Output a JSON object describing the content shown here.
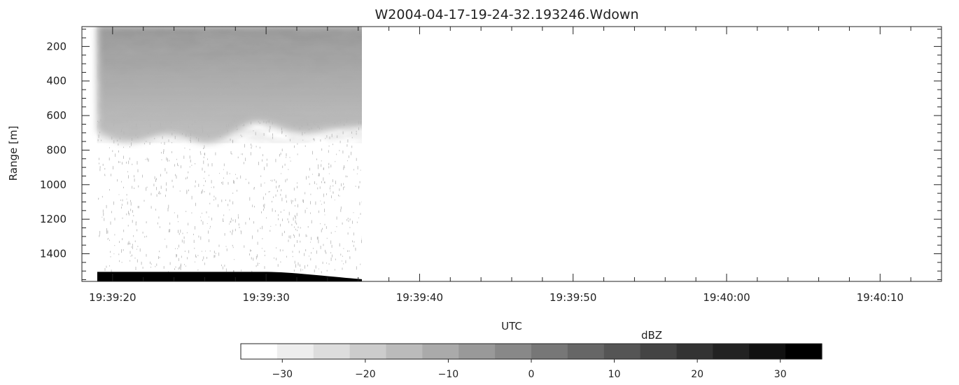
{
  "chart_data": {
    "type": "heatmap",
    "title": "W2004-04-17-19-24-32.193246.Wdown",
    "xlabel": "UTC",
    "ylabel": "Range  [m]",
    "x_axis": {
      "range_seconds_of_day": [
        70758,
        70814
      ],
      "ticks": [
        {
          "value": 70760,
          "label": "19:39:20"
        },
        {
          "value": 70770,
          "label": "19:39:30"
        },
        {
          "value": 70780,
          "label": "19:39:40"
        },
        {
          "value": 70790,
          "label": "19:39:50"
        },
        {
          "value": 70800,
          "label": "19:40:00"
        },
        {
          "value": 70810,
          "label": "19:40:10"
        }
      ]
    },
    "y_axis": {
      "range": [
        85,
        1560
      ],
      "inverted": true,
      "ticks": [
        200,
        400,
        600,
        800,
        1000,
        1200,
        1400
      ]
    },
    "data_extent": {
      "x_start": "19:39:19",
      "x_end": "19:39:37.4"
    },
    "features": [
      {
        "name": "cloud",
        "range_top": 85,
        "range_bottom_min": 640,
        "range_bottom_max": 820,
        "dbz_min": -20,
        "dbz_max": -8
      },
      {
        "name": "ground",
        "range_top": 1505,
        "range_bottom": 1560,
        "dbz": 33,
        "until": "19:39:37"
      }
    ],
    "colorbar": {
      "label": "dBZ",
      "range": [
        -35,
        35
      ],
      "levels": 16,
      "ticks": [
        -30,
        -20,
        -10,
        0,
        10,
        20,
        30
      ],
      "colormap": "white-to-black"
    },
    "grid": false,
    "colors": {
      "low": "#ffffff",
      "high": "#000000",
      "axis": "#222222"
    }
  }
}
